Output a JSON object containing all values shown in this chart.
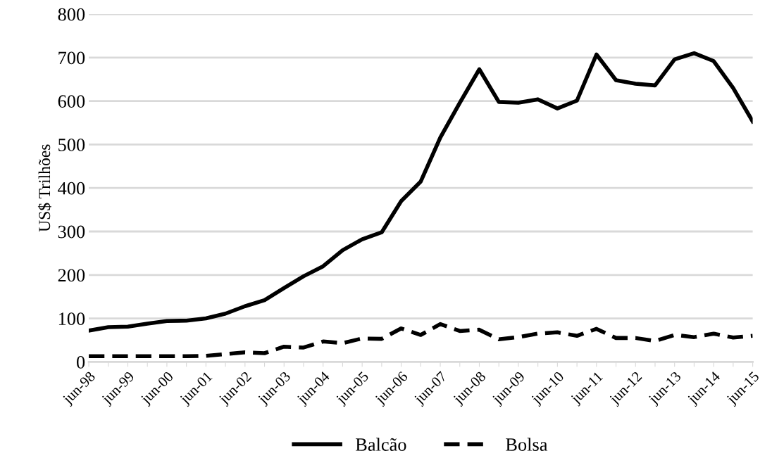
{
  "chart_data": {
    "type": "line",
    "ylabel": "US$ Trilhões",
    "categories": [
      "jun-98",
      null,
      "jun-99",
      null,
      "jun-00",
      null,
      "jun-01",
      null,
      "jun-02",
      null,
      "jun-03",
      null,
      "jun-04",
      null,
      "jun-05",
      null,
      "jun-06",
      null,
      "jun-07",
      null,
      "jun-08",
      null,
      "jun-09",
      null,
      "jun-10",
      null,
      "jun-11",
      null,
      "jun-12",
      null,
      "jun-13",
      null,
      "jun-14",
      null,
      "jun-15"
    ],
    "series": [
      {
        "name": "Balcão",
        "color": "#000000",
        "line_style": "solid",
        "values": [
          72,
          80,
          81,
          88,
          94,
          95,
          100,
          111,
          128,
          142,
          170,
          197,
          220,
          257,
          282,
          298,
          370,
          415,
          516,
          596,
          673,
          598,
          596,
          604,
          583,
          601,
          707,
          648,
          640,
          636,
          696,
          710,
          692,
          630,
          553
        ]
      },
      {
        "name": "Bolsa",
        "color": "#000000",
        "line_style": "dashed",
        "values": [
          13,
          13,
          13,
          13,
          13,
          13,
          14,
          18,
          22,
          20,
          35,
          33,
          47,
          43,
          54,
          53,
          77,
          62,
          87,
          71,
          74,
          52,
          57,
          65,
          68,
          60,
          76,
          55,
          55,
          48,
          62,
          57,
          65,
          56,
          60
        ]
      }
    ],
    "ylim": [
      0,
      800
    ],
    "yticks": [
      0,
      100,
      200,
      300,
      400,
      500,
      600,
      700,
      800
    ],
    "grid": "y",
    "legend": "bottom"
  }
}
